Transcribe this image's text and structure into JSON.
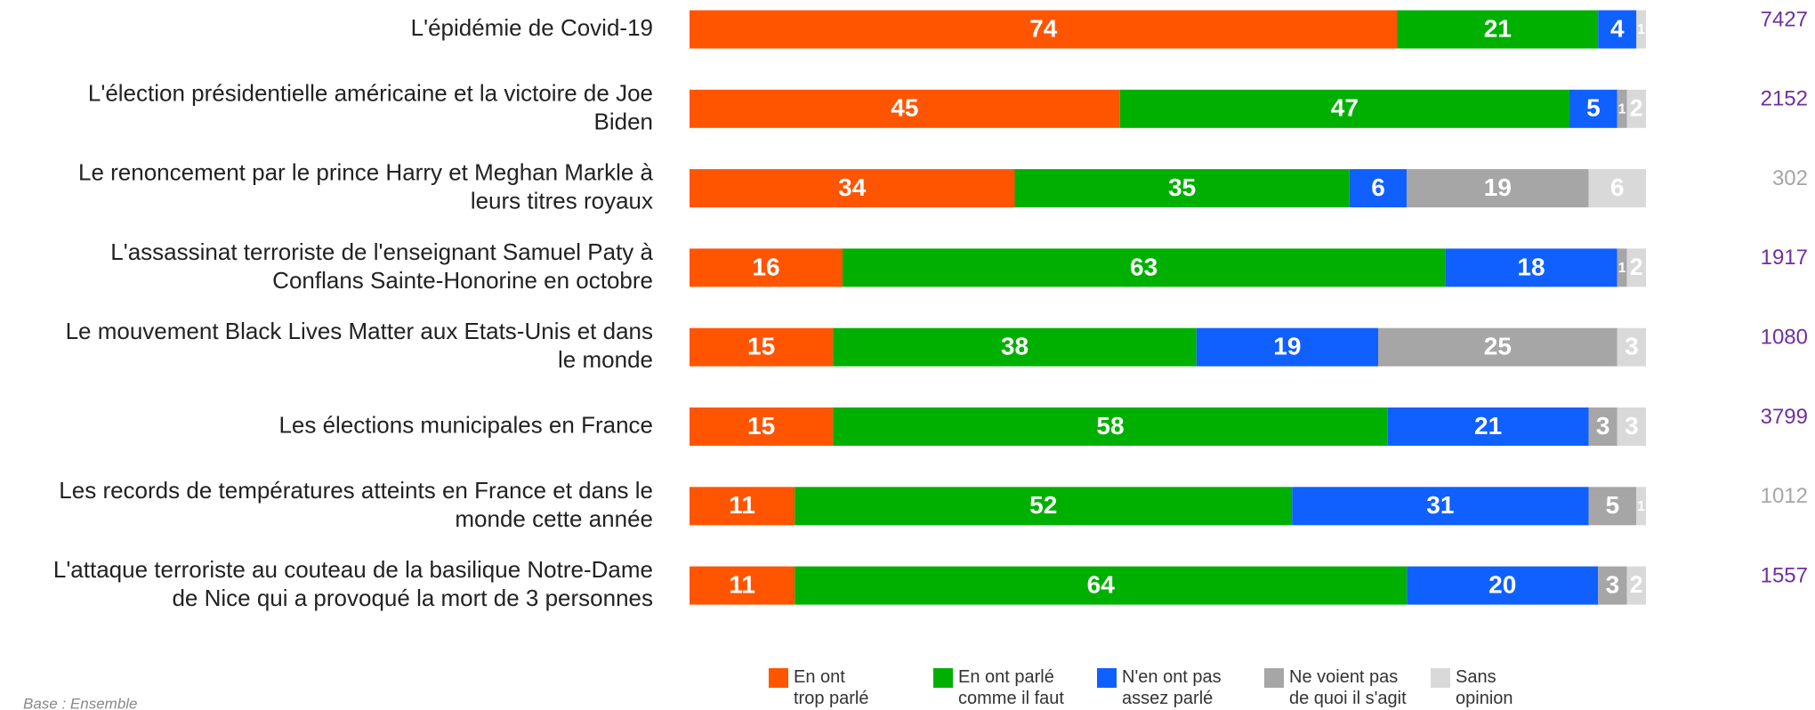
{
  "chart_data": {
    "type": "stacked-bar-horizontal",
    "categories": [
      "L'épidémie de Covid-19",
      "L'élection présidentielle américaine et la victoire de Joe\nBiden",
      "Le renoncement par le prince Harry et Meghan Markle à\nleurs titres royaux",
      "L'assassinat terroriste de l'enseignant Samuel Paty à\nConflans Sainte-Honorine en octobre",
      "Le mouvement Black Lives Matter aux Etats-Unis et dans\nle  monde",
      "Les élections municipales en France",
      "Les records de températures atteints en France et dans le\nmonde cette année",
      "L'attaque terroriste au couteau de la basilique Notre-Dame\nde Nice qui a provoqué la mort de 3 personnes"
    ],
    "series": [
      {
        "name": "En ont\ntrop parlé",
        "color": "#ff5500",
        "values": [
          74,
          45,
          34,
          16,
          15,
          15,
          11,
          11
        ]
      },
      {
        "name": "En ont parlé\ncomme il faut",
        "color": "#00b000",
        "values": [
          21,
          47,
          35,
          63,
          38,
          58,
          52,
          64
        ]
      },
      {
        "name": "N'en ont pas\nassez parlé",
        "color": "#1060ff",
        "values": [
          4,
          5,
          6,
          18,
          19,
          21,
          31,
          20
        ]
      },
      {
        "name": "Ne voient pas\nde quoi il s'agit",
        "color": "#a6a6a6",
        "values": [
          0,
          1,
          19,
          1,
          25,
          3,
          5,
          3
        ]
      },
      {
        "name": "Sans\nopinion",
        "color": "#d9d9d9",
        "values": [
          1,
          2,
          6,
          2,
          3,
          3,
          1,
          2
        ]
      }
    ],
    "counts": [
      7427,
      2152,
      302,
      1917,
      1080,
      3799,
      1012,
      1557
    ],
    "counts_colors": [
      "#7030a0",
      "#7030a0",
      "#a6a6a6",
      "#7030a0",
      "#7030a0",
      "#7030a0",
      "#a6a6a6",
      "#7030a0"
    ],
    "xlim": [
      0,
      100
    ],
    "note": "Base : Ensemble"
  }
}
